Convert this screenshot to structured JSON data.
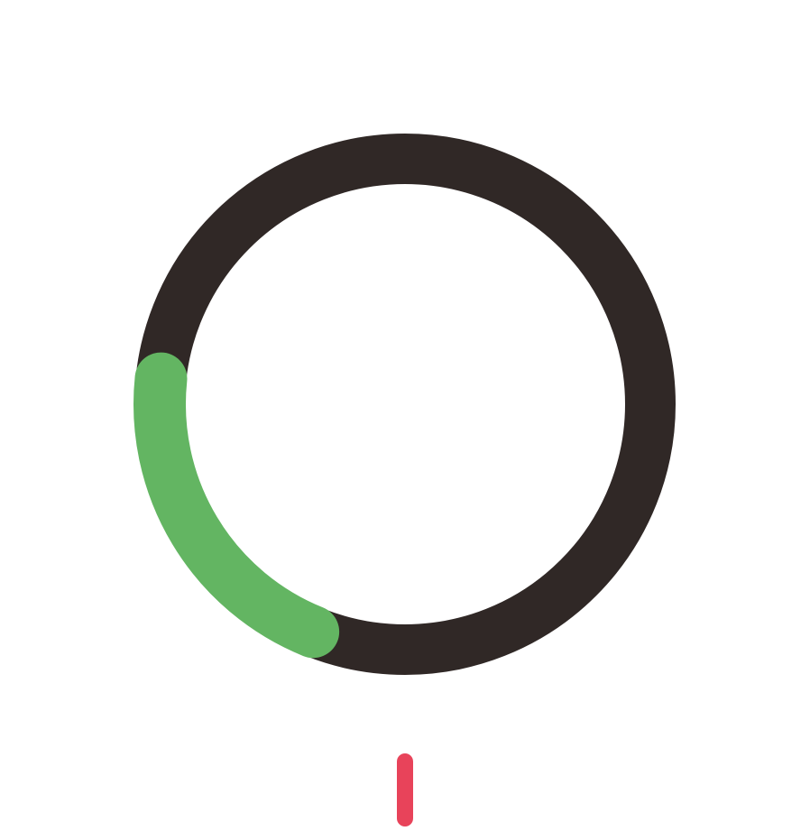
{
  "ring": {
    "progress_fraction": 0.206,
    "progress_start_angle_deg": 202,
    "progress_end_angle_deg": 276,
    "track_color": "#302826",
    "progress_color": "#63B562"
  },
  "indicator": {
    "icon": "pointer-tick-icon",
    "color": "#E8435A"
  },
  "background_color": "#ffffff"
}
